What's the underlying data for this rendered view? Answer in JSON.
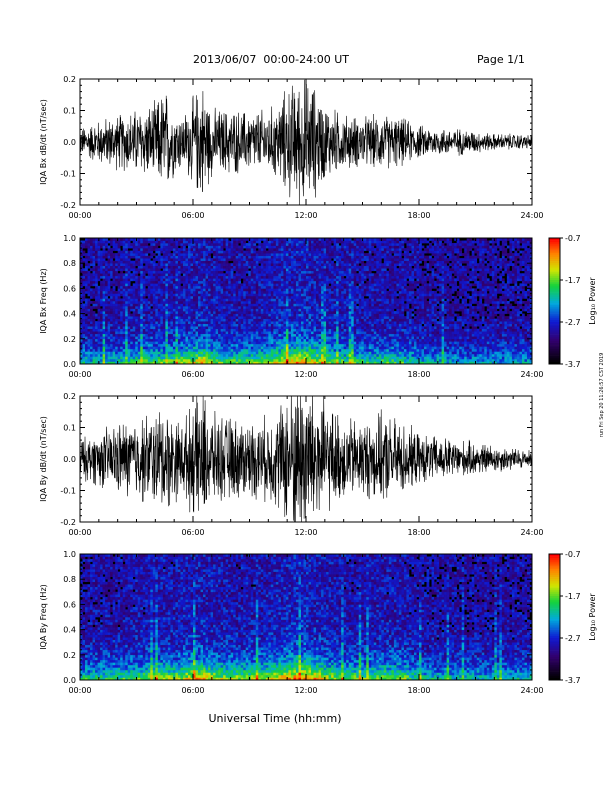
{
  "header": {
    "title": "2013/06/07  00:00-24:00 UT",
    "page": "Page 1/1"
  },
  "footer": {
    "xlabel": "Universal Time (hh:mm)"
  },
  "side_stamp": "run Fri Sep 20 11:26:57 CST 2019",
  "colors": {
    "trace": "#000000",
    "axis": "#000000",
    "background": "#ffffff"
  },
  "chart_data": [
    {
      "type": "line",
      "panel": "bx-timeseries",
      "ylabel": "IQA Bx dB/dt (nT/sec)",
      "ylim": [
        -0.2,
        0.2
      ],
      "yticks": [
        "-0.2",
        "-0.1",
        "0.0",
        "0.1",
        "0.2"
      ],
      "xlim": [
        "00:00",
        "24:00"
      ],
      "xticks": [
        "00:00",
        "06:00",
        "12:00",
        "18:00",
        "24:00"
      ],
      "x_hours": [
        0,
        1,
        2,
        3,
        4,
        4.5,
        5,
        5.5,
        6,
        6.5,
        7,
        8,
        9,
        10,
        10.5,
        11,
        11.5,
        12,
        12.5,
        13,
        14,
        15,
        16,
        17,
        18,
        19,
        20,
        21,
        22,
        23,
        24
      ],
      "amplitude": [
        0.05,
        0.08,
        0.1,
        0.12,
        0.14,
        0.2,
        0.12,
        0.1,
        0.16,
        0.22,
        0.12,
        0.12,
        0.11,
        0.12,
        0.14,
        0.2,
        0.22,
        0.24,
        0.2,
        0.14,
        0.1,
        0.09,
        0.1,
        0.09,
        0.06,
        0.05,
        0.05,
        0.04,
        0.03,
        0.03,
        0.025
      ]
    },
    {
      "type": "heatmap",
      "panel": "bx-spectrogram",
      "ylabel": "IQA Bx Freq (Hz)",
      "ylim": [
        0.0,
        1.0
      ],
      "yticks": [
        "0.0",
        "0.2",
        "0.4",
        "0.6",
        "0.8",
        "1.0"
      ],
      "xlim": [
        "00:00",
        "24:00"
      ],
      "xticks": [
        "00:00",
        "06:00",
        "12:00",
        "18:00",
        "24:00"
      ],
      "colorbar": {
        "label": "Log₁₀ Power",
        "ticks": [
          "-0.7",
          "-1.7",
          "-2.7",
          "-3.7"
        ],
        "range": [
          -3.7,
          -0.7
        ]
      },
      "x_hours": [
        0,
        2,
        3,
        4,
        5,
        6,
        6.5,
        7,
        8,
        9,
        10,
        11,
        12,
        13,
        14,
        15,
        16,
        17,
        18,
        20,
        22,
        24
      ],
      "intensity": [
        0.35,
        0.4,
        0.45,
        0.5,
        0.5,
        0.6,
        0.7,
        0.55,
        0.5,
        0.5,
        0.55,
        0.7,
        0.75,
        0.55,
        0.5,
        0.45,
        0.45,
        0.45,
        0.35,
        0.3,
        0.3,
        0.3
      ]
    },
    {
      "type": "line",
      "panel": "by-timeseries",
      "ylabel": "IQA By dB/dt (nT/sec)",
      "ylim": [
        -0.2,
        0.2
      ],
      "yticks": [
        "-0.2",
        "-0.1",
        "0.0",
        "0.1",
        "0.2"
      ],
      "xlim": [
        "00:00",
        "24:00"
      ],
      "xticks": [
        "00:00",
        "06:00",
        "12:00",
        "18:00",
        "24:00"
      ],
      "x_hours": [
        0,
        1,
        2,
        3,
        4,
        4.5,
        5,
        5.5,
        6,
        6.5,
        7,
        8,
        9,
        10,
        10.5,
        11,
        11.5,
        12,
        12.5,
        13,
        14,
        15,
        16,
        17,
        18,
        19,
        20,
        21,
        22,
        23,
        24
      ],
      "amplitude": [
        0.07,
        0.1,
        0.13,
        0.15,
        0.17,
        0.2,
        0.15,
        0.14,
        0.2,
        0.25,
        0.16,
        0.15,
        0.14,
        0.15,
        0.18,
        0.25,
        0.3,
        0.3,
        0.28,
        0.2,
        0.15,
        0.14,
        0.16,
        0.14,
        0.09,
        0.08,
        0.07,
        0.06,
        0.05,
        0.04,
        0.03
      ]
    },
    {
      "type": "heatmap",
      "panel": "by-spectrogram",
      "ylabel": "IQA By Freq (Hz)",
      "ylim": [
        0.0,
        1.0
      ],
      "yticks": [
        "0.0",
        "0.2",
        "0.4",
        "0.6",
        "0.8",
        "1.0"
      ],
      "xlim": [
        "00:00",
        "24:00"
      ],
      "xticks": [
        "00:00",
        "06:00",
        "12:00",
        "18:00",
        "24:00"
      ],
      "colorbar": {
        "label": "Log₁₀ Power",
        "ticks": [
          "-0.7",
          "-1.7",
          "-2.7",
          "-3.7"
        ],
        "range": [
          -3.7,
          -0.7
        ]
      },
      "x_hours": [
        0,
        2,
        3,
        4,
        5,
        6,
        6.5,
        7,
        8,
        9,
        10,
        11,
        12,
        13,
        14,
        15,
        16,
        17,
        18,
        20,
        22,
        24
      ],
      "intensity": [
        0.4,
        0.45,
        0.5,
        0.55,
        0.55,
        0.65,
        0.72,
        0.6,
        0.55,
        0.55,
        0.6,
        0.75,
        0.8,
        0.6,
        0.55,
        0.5,
        0.55,
        0.55,
        0.4,
        0.35,
        0.35,
        0.35
      ]
    }
  ]
}
